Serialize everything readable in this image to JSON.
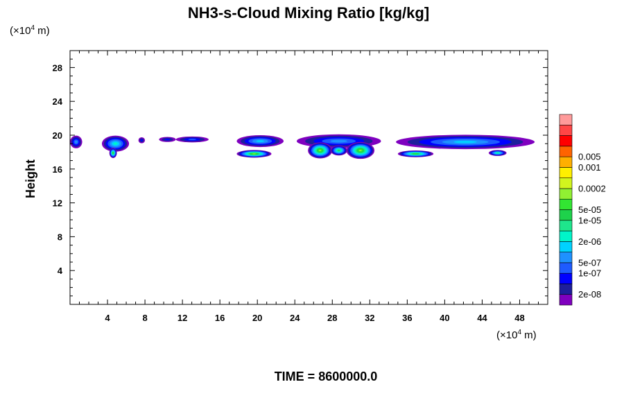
{
  "chart_data": {
    "type": "heatmap",
    "title": "NH3-s-Cloud Mixing Ratio [kg/kg]",
    "ylabel": "Height",
    "xunit_prefix": "(×10",
    "xunit_exp": "4",
    "xunit_suffix": " m)",
    "yunit_prefix": "(×10",
    "yunit_exp": "4",
    "yunit_suffix": " m)",
    "xlim": [
      0,
      51
    ],
    "ylim": [
      0,
      30
    ],
    "xticks": [
      {
        "value": 4,
        "label": "4"
      },
      {
        "value": 8,
        "label": "8"
      },
      {
        "value": 12,
        "label": "12"
      },
      {
        "value": 16,
        "label": "16"
      },
      {
        "value": 20,
        "label": "20"
      },
      {
        "value": 24,
        "label": "24"
      },
      {
        "value": 28,
        "label": "28"
      },
      {
        "value": 32,
        "label": "32"
      },
      {
        "value": 36,
        "label": "36"
      },
      {
        "value": 40,
        "label": "40"
      },
      {
        "value": 44,
        "label": "44"
      },
      {
        "value": 48,
        "label": "48"
      }
    ],
    "yticks": [
      {
        "value": 4,
        "label": "4"
      },
      {
        "value": 8,
        "label": "8"
      },
      {
        "value": 12,
        "label": "12"
      },
      {
        "value": 16,
        "label": "16"
      },
      {
        "value": 20,
        "label": "20"
      },
      {
        "value": 24,
        "label": "24"
      },
      {
        "value": 28,
        "label": "28"
      }
    ],
    "colorbar": {
      "colors": [
        "#7f00bf",
        "#1e1e9c",
        "#0000ff",
        "#1e5bff",
        "#1e91ff",
        "#00d2ff",
        "#00f5c8",
        "#1ee68c",
        "#1ed24b",
        "#32e632",
        "#91f032",
        "#d2f51e",
        "#ffef00",
        "#ffaf00",
        "#ff6400",
        "#ff0000",
        "#ff4646",
        "#ff9a9a"
      ],
      "labels": [
        {
          "boundary": 1,
          "label": "2e-08"
        },
        {
          "boundary": 3,
          "label": "1e-07"
        },
        {
          "boundary": 4,
          "label": "5e-07"
        },
        {
          "boundary": 6,
          "label": "2e-06"
        },
        {
          "boundary": 8,
          "label": "1e-05"
        },
        {
          "boundary": 9,
          "label": "5e-05"
        },
        {
          "boundary": 11,
          "label": "0.0002"
        },
        {
          "boundary": 13,
          "label": "0.001"
        },
        {
          "boundary": 14,
          "label": "0.005"
        }
      ]
    },
    "field_regions": [
      {
        "x0": 0.0,
        "x1": 1.3,
        "y0": 18.4,
        "y1": 19.9,
        "peak": 4,
        "yc": 19.2
      },
      {
        "x0": 3.4,
        "x1": 6.3,
        "y0": 18.1,
        "y1": 20.0,
        "peak": 6,
        "yc": 19.0
      },
      {
        "x0": 4.2,
        "x1": 5.0,
        "y0": 17.3,
        "y1": 18.5,
        "peak": 9,
        "yc": 17.9
      },
      {
        "x0": 7.3,
        "x1": 8.0,
        "y0": 19.1,
        "y1": 19.8,
        "peak": 2,
        "yc": 19.4
      },
      {
        "x0": 9.5,
        "x1": 11.3,
        "y0": 19.2,
        "y1": 19.8,
        "peak": 2,
        "yc": 19.5
      },
      {
        "x0": 11.3,
        "x1": 14.8,
        "y0": 19.2,
        "y1": 19.9,
        "peak": 3,
        "yc": 19.5
      },
      {
        "x0": 17.8,
        "x1": 22.8,
        "y0": 18.6,
        "y1": 20.0,
        "peak": 5,
        "yc": 19.3
      },
      {
        "x0": 17.8,
        "x1": 21.5,
        "y0": 17.4,
        "y1": 18.3,
        "peak": 10,
        "yc": 17.8
      },
      {
        "x0": 24.2,
        "x1": 33.2,
        "y0": 18.4,
        "y1": 20.0,
        "peak": 4,
        "yc": 19.3
      },
      {
        "x0": 25.4,
        "x1": 28.0,
        "y0": 17.3,
        "y1": 19.2,
        "peak": 10,
        "yc": 18.2
      },
      {
        "x0": 29.5,
        "x1": 32.5,
        "y0": 17.3,
        "y1": 19.3,
        "peak": 10,
        "yc": 18.2
      },
      {
        "x0": 27.8,
        "x1": 29.6,
        "y0": 17.6,
        "y1": 18.8,
        "peak": 8,
        "yc": 18.2
      },
      {
        "x0": 34.8,
        "x1": 49.6,
        "y0": 18.3,
        "y1": 20.0,
        "peak": 5,
        "yc": 19.2
      },
      {
        "x0": 35.0,
        "x1": 38.8,
        "y0": 17.4,
        "y1": 18.2,
        "peak": 9,
        "yc": 17.8
      },
      {
        "x0": 44.7,
        "x1": 46.6,
        "y0": 17.5,
        "y1": 18.2,
        "peak": 7,
        "yc": 17.9
      }
    ]
  },
  "footer": {
    "time_label": "TIME = 8600000.0"
  }
}
